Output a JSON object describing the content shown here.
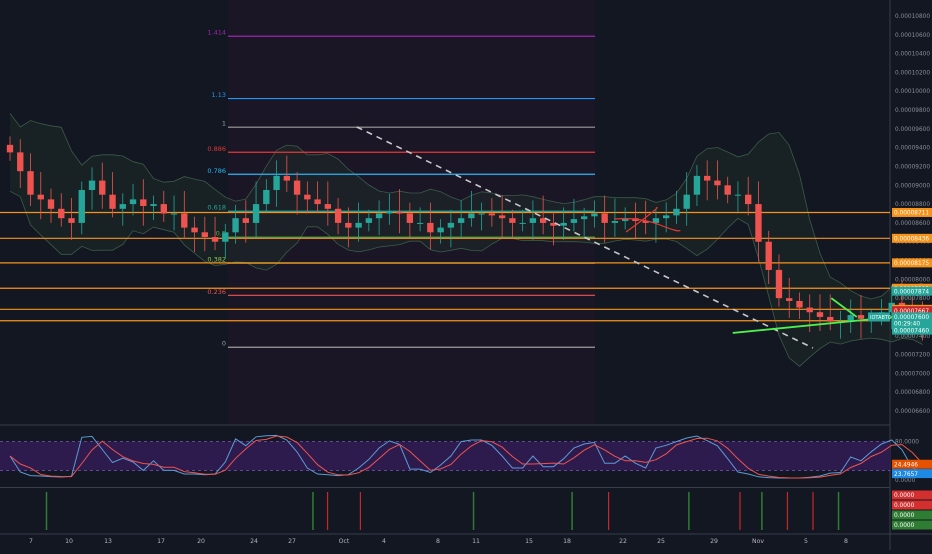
{
  "chart_data": {
    "type": "candlestick",
    "symbol_tag": "IOTABTC",
    "colors": {
      "background": "#131722",
      "up_candle": "#26a69a",
      "down_candle": "#ef5350",
      "fib_range_shade": "#1a1626",
      "bollinger_fill": "#1d2b27",
      "bollinger_line": "#3c5a4a",
      "horizontal_level": "#f7931a",
      "stoch_band": "#2d1b4e",
      "stoch_k": "#5b9bd5",
      "stoch_d": "#ef5350"
    },
    "x_axis": {
      "tick_labels": [
        "7",
        "10",
        "13",
        "17",
        "20",
        "24",
        "27",
        "Oct",
        "4",
        "8",
        "11",
        "15",
        "18",
        "22",
        "25",
        "29",
        "1",
        "Nov",
        "5",
        "8"
      ]
    },
    "price_axis": {
      "tick_labels": [
        "0.00010800",
        "0.00010600",
        "0.00010400",
        "0.00010200",
        "0.00010000",
        "0.00009800",
        "0.00009600",
        "0.00009400",
        "0.00009200",
        "0.00009000",
        "0.00008800",
        "0.00008600",
        "0.00008400",
        "0.00008200",
        "0.00008000",
        "0.00007800",
        "0.00007600",
        "0.00007400",
        "0.00007200",
        "0.00007000",
        "0.00006800",
        "0.00006600"
      ],
      "ylim": [
        6.5e-05,
        0.00011
      ]
    },
    "fib_levels": [
      {
        "ratio": "1.414",
        "price": 0.00010585,
        "color": "#9c27b0"
      },
      {
        "ratio": "1.13",
        "price": 9.922e-05,
        "color": "#2196f3"
      },
      {
        "ratio": "1",
        "price": 9.618e-05,
        "color": "#9e9e9e"
      },
      {
        "ratio": "0.886",
        "price": 9.351e-05,
        "color": "#e53935"
      },
      {
        "ratio": "0.786",
        "price": 9.117e-05,
        "color": "#29b6f6"
      },
      {
        "ratio": "0.618",
        "price": 8.724e-05,
        "color": "#26a69a"
      },
      {
        "ratio": "0.5",
        "price": 8.448e-05,
        "color": "#4caf50"
      },
      {
        "ratio": "0.382",
        "price": 8.172e-05,
        "color": "#8bc34a"
      },
      {
        "ratio": "0.236",
        "price": 7.83e-05,
        "color": "#ef5350"
      },
      {
        "ratio": "0",
        "price": 7.278e-05,
        "color": "#9e9e9e"
      }
    ],
    "horizontal_levels": [
      {
        "label": "0.00008711",
        "price": 8.711e-05,
        "box_color": "#f7931a"
      },
      {
        "label": "0.00008436",
        "price": 8.436e-05,
        "box_color": "#f7931a"
      },
      {
        "label": "0.00008175",
        "price": 8.175e-05,
        "box_color": "#f7931a"
      },
      {
        "label": "0.00007905",
        "price": 7.905e-05,
        "box_color": "#f7931a"
      },
      {
        "label": "0.00007681",
        "price": 7.681e-05,
        "box_color": "#f7931a"
      },
      {
        "label": "0.00007560",
        "price": 7.56e-05,
        "box_color": "#f7931a"
      }
    ],
    "price_tags": [
      {
        "label": "0.00007874",
        "price": 7.874e-05,
        "box_color": "#26a69a"
      },
      {
        "label": "0.00007667",
        "price": 7.667e-05,
        "box_color": "#c62828"
      },
      {
        "label": "0.00007600",
        "price": 7.6e-05,
        "box_color": "#26a69a"
      },
      {
        "label": "0.00007460",
        "price": 7.46e-05,
        "box_color": "#26a69a"
      }
    ],
    "last_price_tag": {
      "label": "00:29:40",
      "price": 7.53e-05,
      "box_color": "#26a69a"
    },
    "candles": {
      "x_range": [
        0,
        25
      ],
      "closes": [
        9.35e-05,
        9.15e-05,
        8.9e-05,
        8.85e-05,
        8.75e-05,
        8.65e-05,
        8.6e-05,
        8.95e-05,
        9.05e-05,
        8.9e-05,
        8.75e-05,
        8.8e-05,
        8.85e-05,
        8.78e-05,
        8.8e-05,
        8.7e-05,
        8.7e-05,
        8.55e-05,
        8.5e-05,
        8.45e-05,
        8.4e-05,
        8.5e-05,
        8.65e-05,
        8.6e-05,
        8.8e-05,
        8.95e-05,
        9.1e-05,
        9.05e-05,
        8.9e-05,
        8.85e-05,
        8.8e-05,
        8.75e-05,
        8.6e-05,
        8.55e-05,
        8.6e-05,
        8.65e-05,
        8.7e-05,
        8.72e-05,
        8.7e-05,
        8.6e-05,
        8.6e-05,
        8.5e-05,
        8.55e-05,
        8.6e-05,
        8.65e-05,
        8.7e-05,
        8.7e-05,
        8.68e-05,
        8.65e-05,
        8.6e-05,
        8.6e-05,
        8.65e-05,
        8.6e-05,
        8.57e-05,
        8.6e-05,
        8.64e-05,
        8.67e-05,
        8.7e-05,
        8.6e-05,
        8.62e-05,
        8.65e-05,
        8.62e-05,
        8.6e-05,
        8.65e-05,
        8.68e-05,
        8.75e-05,
        8.9e-05,
        9.1e-05,
        9.05e-05,
        9e-05,
        8.9e-05,
        8.9e-05,
        8.8e-05,
        8.4e-05,
        8.1e-05,
        7.8e-05,
        7.77e-05,
        7.7e-05,
        7.65e-05,
        7.6e-05,
        7.55e-05,
        7.55e-05,
        7.62e-05,
        7.58e-05,
        7.6e-05,
        7.65e-05,
        7.75e-05,
        7.7e-05,
        7.6e-05,
        7.5e-05
      ]
    },
    "trendlines": [
      {
        "name": "downtrend",
        "color": "#c8c8c8",
        "style": "dashed",
        "from": [
          9.5,
          9.62e-05
        ],
        "to": [
          22,
          7.27e-05
        ]
      },
      {
        "name": "uptrend",
        "color": "#4ef04e",
        "style": "solid",
        "from": [
          19.8,
          7.43e-05
        ],
        "to": [
          25,
          7.63e-05
        ]
      },
      {
        "name": "wedge-upper",
        "color": "#4ef04e",
        "style": "solid",
        "from": [
          22.5,
          7.8e-05
        ],
        "to": [
          23.2,
          7.6e-05
        ]
      }
    ],
    "stochastic": {
      "ylim": [
        0,
        100
      ],
      "upper_band": 80,
      "lower_band": 20,
      "tick_labels": [
        "80.0000",
        "0.0000"
      ],
      "value_tags": [
        {
          "label": "24.4946",
          "value": 24.4946,
          "box_color": "#e65100"
        },
        {
          "label": "23.7657",
          "value": 23.7657,
          "box_color": "#1e88e5"
        }
      ]
    },
    "signal_panel": {
      "value_tags": [
        {
          "label": "0.0000",
          "box_color": "#d32f2f"
        },
        {
          "label": "0.0000",
          "box_color": "#d32f2f"
        },
        {
          "label": "0.0000",
          "box_color": "#2e7d32"
        },
        {
          "label": "0.0000",
          "box_color": "#2e7d32"
        }
      ],
      "green_bar_positions": [
        1,
        8.3,
        12.7,
        15.4,
        18.6,
        20.6,
        22.7
      ],
      "red_bar_positions": [
        8.7,
        9.6,
        16.4,
        20.0,
        21.3,
        22.0
      ]
    }
  }
}
